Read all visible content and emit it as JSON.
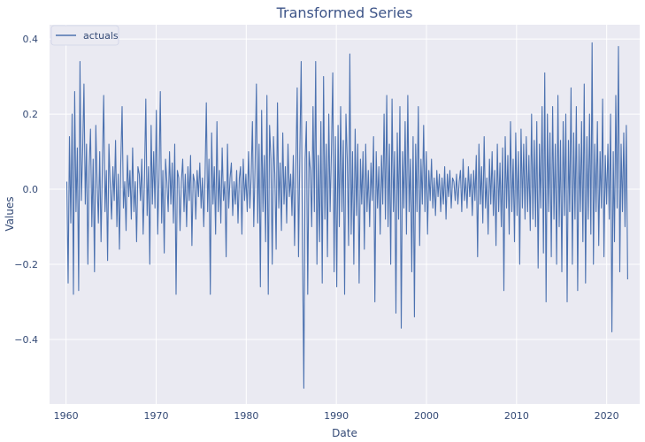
{
  "chart_data": {
    "type": "line",
    "title": "Transformed Series",
    "xlabel": "Date",
    "ylabel": "Values",
    "xlim": [
      "1958-03-01",
      "2023-09-01"
    ],
    "ylim": [
      -0.572,
      0.438
    ],
    "x_ticks": [
      "1960",
      "1970",
      "1980",
      "1990",
      "2000",
      "2010",
      "2020"
    ],
    "y_ticks": [
      0.4,
      0.2,
      0.0,
      -0.2,
      -0.4
    ],
    "y_tick_labels": [
      "0.4",
      "0.2",
      "0.0",
      "−0.2",
      "−0.4"
    ],
    "grid": true,
    "legend": {
      "position": "top-left",
      "entries": [
        "actuals"
      ]
    },
    "series": [
      {
        "name": "actuals",
        "color": "#4c72b0",
        "frequency": "monthly",
        "x_start": "1960-02",
        "x_end": "2022-05",
        "values": [
          0.02,
          -0.25,
          0.14,
          -0.09,
          0.2,
          -0.28,
          0.26,
          -0.06,
          0.11,
          -0.27,
          0.34,
          -0.03,
          0.1,
          0.28,
          -0.04,
          0.12,
          -0.2,
          0.06,
          0.16,
          -0.1,
          0.08,
          -0.22,
          0.17,
          0.02,
          -0.09,
          0.1,
          -0.14,
          0.06,
          0.25,
          -0.06,
          0.05,
          -0.19,
          0.12,
          0.01,
          -0.08,
          0.06,
          -0.03,
          0.13,
          -0.1,
          0.04,
          -0.16,
          0.07,
          0.22,
          -0.05,
          0.02,
          -0.11,
          0.09,
          -0.02,
          0.05,
          -0.08,
          0.11,
          -0.06,
          0.02,
          -0.14,
          0.06,
          0.04,
          -0.03,
          0.08,
          -0.12,
          0.03,
          0.24,
          -0.07,
          0.06,
          -0.2,
          0.17,
          -0.04,
          0.1,
          -0.05,
          0.21,
          -0.12,
          0.03,
          0.26,
          -0.09,
          0.05,
          -0.17,
          0.08,
          0.02,
          -0.06,
          0.1,
          -0.04,
          0.07,
          -0.09,
          0.12,
          -0.28,
          0.05,
          0.03,
          -0.11,
          0.02,
          0.08,
          -0.06,
          0.04,
          -0.1,
          0.06,
          -0.03,
          0.09,
          -0.15,
          0.04,
          0.02,
          -0.08,
          0.05,
          -0.02,
          0.07,
          -0.05,
          0.03,
          -0.1,
          0.04,
          0.23,
          -0.06,
          0.08,
          -0.28,
          0.15,
          -0.04,
          0.06,
          -0.12,
          0.18,
          -0.06,
          0.05,
          -0.09,
          0.11,
          -0.03,
          0.02,
          -0.18,
          0.12,
          -0.05,
          0.03,
          0.07,
          -0.07,
          0.02,
          -0.04,
          0.05,
          -0.09,
          0.03,
          0.06,
          -0.12,
          0.08,
          -0.03,
          0.04,
          -0.06,
          0.1,
          -0.05,
          0.03,
          0.18,
          -0.1,
          0.06,
          0.28,
          -0.09,
          0.12,
          -0.26,
          0.21,
          -0.06,
          0.09,
          -0.14,
          0.25,
          -0.28,
          0.17,
          0.08,
          -0.2,
          0.14,
          0.04,
          -0.16,
          0.23,
          -0.05,
          0.07,
          -0.11,
          0.15,
          -0.04,
          0.06,
          -0.09,
          0.12,
          -0.02,
          0.04,
          -0.07,
          0.09,
          -0.15,
          0.06,
          0.27,
          -0.18,
          0.1,
          0.34,
          -0.16,
          -0.53,
          0.08,
          0.18,
          -0.28,
          0.1,
          0.05,
          -0.1,
          0.22,
          -0.06,
          0.34,
          -0.2,
          0.09,
          -0.14,
          0.18,
          -0.25,
          0.3,
          -0.08,
          0.12,
          -0.18,
          0.2,
          -0.06,
          0.1,
          0.31,
          -0.22,
          0.14,
          -0.26,
          0.17,
          -0.1,
          0.22,
          -0.06,
          0.13,
          -0.28,
          0.2,
          0.08,
          -0.15,
          0.36,
          -0.12,
          0.1,
          -0.2,
          0.16,
          -0.07,
          0.12,
          -0.25,
          0.08,
          -0.04,
          0.1,
          -0.16,
          0.12,
          -0.06,
          0.05,
          -0.1,
          0.07,
          -0.03,
          0.14,
          -0.3,
          0.1,
          -0.05,
          0.06,
          -0.12,
          0.09,
          -0.04,
          0.2,
          -0.08,
          0.25,
          -0.1,
          0.12,
          -0.2,
          0.24,
          -0.06,
          0.1,
          -0.33,
          0.15,
          -0.08,
          0.22,
          -0.37,
          0.1,
          -0.05,
          0.18,
          -0.12,
          0.25,
          -0.06,
          0.08,
          -0.22,
          0.14,
          -0.34,
          0.12,
          -0.06,
          0.22,
          -0.15,
          0.08,
          -0.04,
          0.17,
          -0.06,
          0.1,
          -0.12,
          0.05,
          -0.03,
          0.08,
          -0.05,
          0.03,
          -0.07,
          0.05,
          -0.02,
          0.04,
          -0.06,
          0.03,
          -0.04,
          0.06,
          -0.08,
          0.04,
          -0.02,
          0.05,
          -0.05,
          0.03,
          0.02,
          -0.03,
          0.04,
          -0.04,
          0.02,
          0.05,
          -0.06,
          0.08,
          -0.03,
          0.03,
          -0.05,
          0.06,
          -0.02,
          0.04,
          -0.07,
          0.05,
          -0.03,
          0.09,
          -0.18,
          0.12,
          -0.04,
          0.06,
          -0.09,
          0.14,
          -0.05,
          0.03,
          -0.12,
          0.08,
          -0.04,
          0.1,
          -0.07,
          0.05,
          -0.15,
          0.12,
          -0.06,
          0.07,
          -0.1,
          0.11,
          -0.27,
          0.14,
          -0.05,
          0.09,
          -0.12,
          0.18,
          -0.06,
          0.08,
          -0.14,
          0.15,
          -0.07,
          0.1,
          -0.2,
          0.16,
          -0.05,
          0.12,
          -0.08,
          0.14,
          -0.06,
          0.09,
          -0.11,
          0.2,
          -0.08,
          0.13,
          -0.1,
          0.18,
          -0.21,
          0.12,
          -0.05,
          0.22,
          -0.17,
          0.31,
          -0.3,
          0.2,
          -0.06,
          0.15,
          -0.18,
          0.22,
          -0.08,
          0.12,
          -0.2,
          0.25,
          -0.1,
          0.13,
          -0.22,
          0.18,
          -0.07,
          0.2,
          -0.3,
          0.13,
          -0.06,
          0.27,
          -0.2,
          0.15,
          -0.08,
          0.22,
          -0.27,
          0.12,
          -0.06,
          0.18,
          -0.14,
          0.28,
          -0.25,
          0.14,
          -0.08,
          0.2,
          -0.12,
          0.39,
          -0.2,
          0.12,
          -0.06,
          0.18,
          -0.15,
          0.1,
          -0.05,
          0.24,
          -0.18,
          0.09,
          -0.04,
          0.12,
          -0.08,
          0.2,
          -0.38,
          0.1,
          -0.14,
          0.25,
          -0.05,
          0.38,
          -0.22,
          0.12,
          -0.06,
          0.15,
          -0.1,
          0.17,
          -0.24
        ]
      }
    ]
  }
}
